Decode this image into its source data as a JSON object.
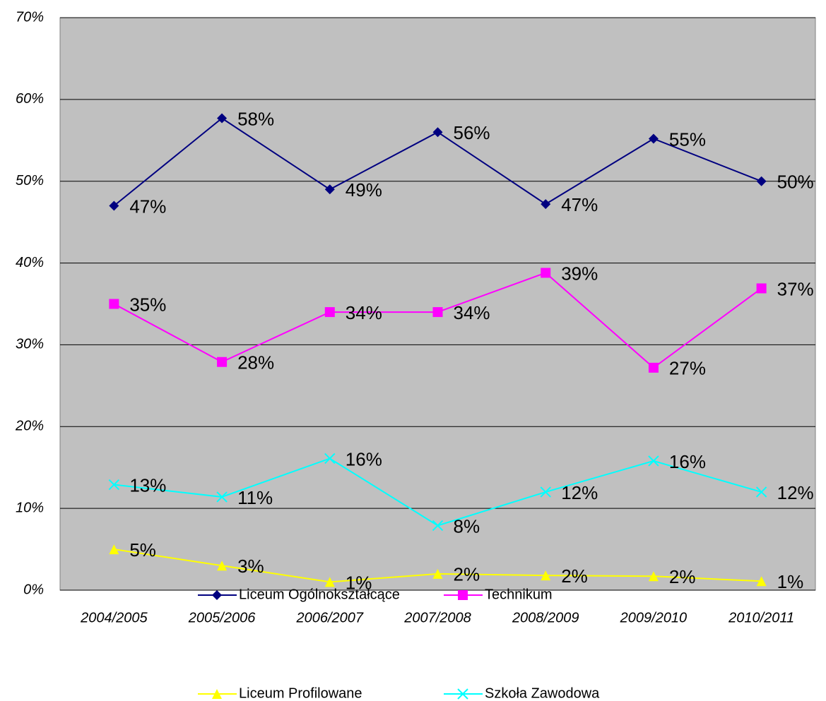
{
  "chart_data": {
    "type": "line",
    "categories": [
      "2004/2005",
      "2005/2006",
      "2006/2007",
      "2007/2008",
      "2008/2009",
      "2009/2010",
      "2010/2011"
    ],
    "series": [
      {
        "name": "Liceum Ogólnokształcące",
        "color": "#000080",
        "marker": "diamond",
        "values": [
          47.0,
          57.7,
          49.0,
          56.0,
          47.2,
          55.2,
          50.0
        ],
        "value_labels": [
          "47%",
          "58%",
          "49%",
          "56%",
          "47%",
          "55%",
          "50%"
        ]
      },
      {
        "name": "Technikum",
        "color": "#ff00ff",
        "marker": "square",
        "values": [
          35.0,
          27.9,
          34.0,
          34.0,
          38.8,
          27.2,
          36.9
        ],
        "value_labels": [
          "35%",
          "28%",
          "34%",
          "34%",
          "39%",
          "27%",
          "37%"
        ]
      },
      {
        "name": "Liceum Profilowane",
        "color": "#ffff00",
        "marker": "triangle",
        "values": [
          5.0,
          3.0,
          1.0,
          2.0,
          1.8,
          1.7,
          1.1
        ],
        "value_labels": [
          "5%",
          "3%",
          "1%",
          "2%",
          "2%",
          "2%",
          "1%"
        ]
      },
      {
        "name": "Szkoła Zawodowa",
        "color": "#00ffff",
        "marker": "x",
        "values": [
          12.9,
          11.4,
          16.1,
          7.9,
          12.0,
          15.8,
          12.0
        ],
        "value_labels": [
          "13%",
          "11%",
          "16%",
          "8%",
          "12%",
          "16%",
          "12%"
        ]
      }
    ],
    "ylim": [
      0,
      70
    ],
    "yticks": [
      {
        "value": 0,
        "label": "0%"
      },
      {
        "value": 10,
        "label": "10%"
      },
      {
        "value": 20,
        "label": "20%"
      },
      {
        "value": 30,
        "label": "30%"
      },
      {
        "value": 40,
        "label": "40%"
      },
      {
        "value": 50,
        "label": "50%"
      },
      {
        "value": 60,
        "label": "60%"
      },
      {
        "value": 70,
        "label": "70%"
      }
    ],
    "grid": true,
    "legend": "bottom"
  }
}
